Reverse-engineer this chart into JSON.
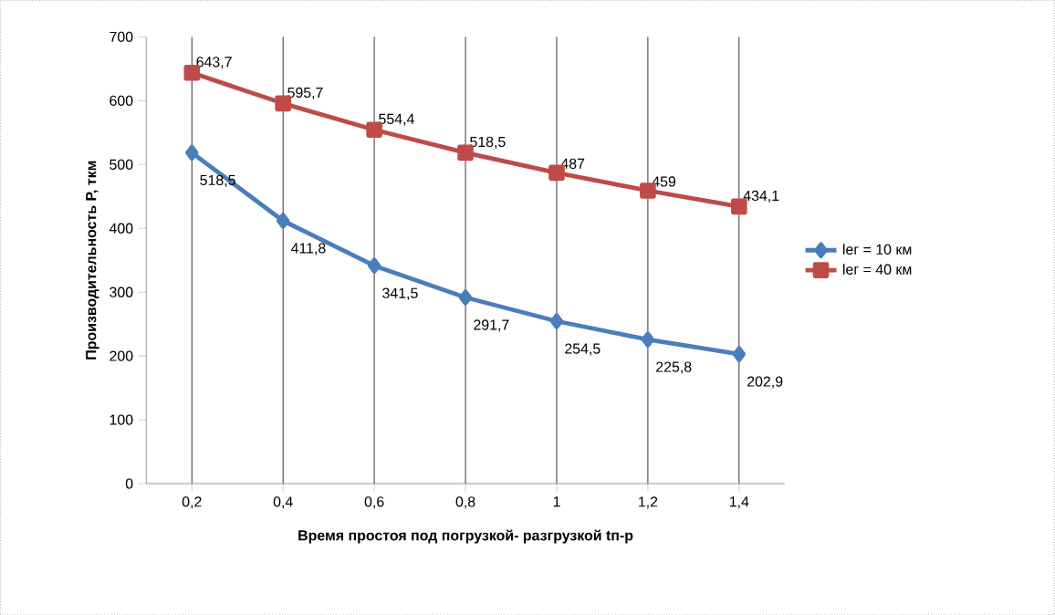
{
  "chart_data": {
    "type": "line",
    "xlabel": "Время простоя под погрузкой- разгрузкой tп-р",
    "ylabel": "Производительность Р, ткм",
    "categories": [
      "0,2",
      "0,4",
      "0,6",
      "0,8",
      "1",
      "1,2",
      "1,4"
    ],
    "series": [
      {
        "name": "lег = 10 км",
        "color": "#4a7ebb",
        "marker": "diamond",
        "values": [
          518.5,
          411.8,
          341.5,
          291.7,
          254.5,
          225.8,
          202.9
        ],
        "value_labels": [
          "518,5",
          "411,8",
          "341,5",
          "291,7",
          "254,5",
          "225,8",
          "202,9"
        ]
      },
      {
        "name": "lег = 40 км",
        "color": "#be4b48",
        "marker": "square",
        "values": [
          643.7,
          595.7,
          554.4,
          518.5,
          487,
          459,
          434.1
        ],
        "value_labels": [
          "643,7",
          "595,7",
          "554,4",
          "518,5",
          "487",
          "459",
          "434,1"
        ]
      }
    ],
    "ylim": [
      0,
      700
    ],
    "yticks": [
      0,
      100,
      200,
      300,
      400,
      500,
      600,
      700
    ],
    "grid": "x",
    "legend": "right"
  }
}
